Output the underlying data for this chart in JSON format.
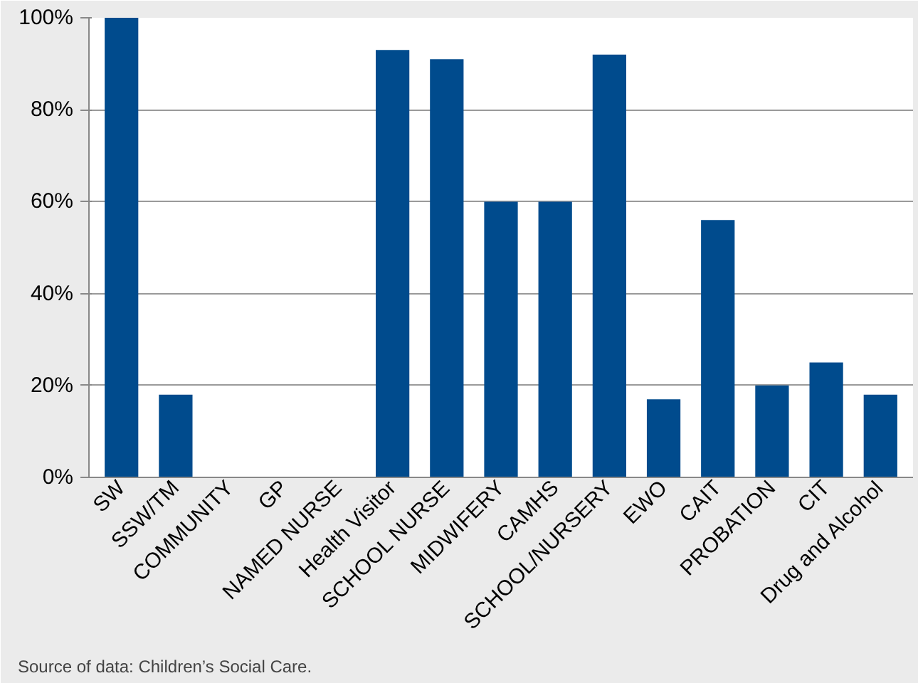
{
  "chart_data": {
    "type": "bar",
    "categories": [
      "SW",
      "SSW/TM",
      "COMMUNITY",
      "GP",
      "NAMED NURSE",
      "Health Visitor",
      "SCHOOL NURSE",
      "MIDWIFERY",
      "CAMHS",
      "SCHOOL/NURSERY",
      "EWO",
      "CAIT",
      "PROBATION",
      "CIT",
      "Drug and Alcohol"
    ],
    "values": [
      100,
      18,
      0,
      0,
      0,
      93,
      91,
      60,
      60,
      92,
      17,
      56,
      20,
      25,
      18
    ],
    "color": "#004b8d",
    "ylim": [
      0,
      100
    ],
    "yticks": [
      {
        "value": 0,
        "label": "0%"
      },
      {
        "value": 20,
        "label": "20%"
      },
      {
        "value": 40,
        "label": "40%"
      },
      {
        "value": 60,
        "label": "60%"
      },
      {
        "value": 80,
        "label": "80%"
      },
      {
        "value": 100,
        "label": "100%"
      }
    ],
    "grid": "y",
    "annotations": [
      "Source of data: Children’s Social Care."
    ]
  }
}
